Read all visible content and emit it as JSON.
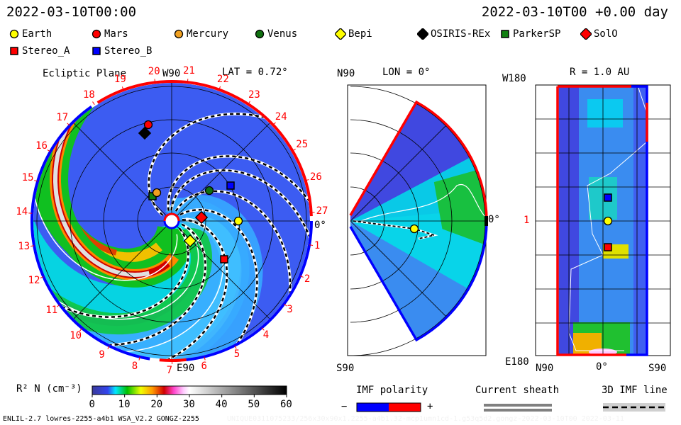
{
  "header": {
    "left_time": "2022-03-10T00:00",
    "right_time": "2022-03-10T00 +0.00 day"
  },
  "legend": [
    {
      "label": "Earth",
      "shape": "circle",
      "color": "#ffff00"
    },
    {
      "label": "Mars",
      "shape": "circle",
      "color": "#ff0000"
    },
    {
      "label": "Mercury",
      "shape": "circle",
      "color": "#f0a020"
    },
    {
      "label": "Venus",
      "shape": "circle",
      "color": "#107010"
    },
    {
      "label": "Bepi",
      "shape": "diamond",
      "color": "#ffff00"
    },
    {
      "label": "OSIRIS-REx",
      "shape": "diamond",
      "color": "#000000"
    },
    {
      "label": "ParkerSP",
      "shape": "square",
      "color": "#108010"
    },
    {
      "label": "SolO",
      "shape": "diamond",
      "color": "#ff0000"
    },
    {
      "label": "Stereo_A",
      "shape": "square",
      "color": "#ff0000"
    },
    {
      "label": "Stereo_B",
      "shape": "square",
      "color": "#0000ff"
    }
  ],
  "chart_data": [
    {
      "type": "heatmap",
      "title": "Ecliptic Plane",
      "subtitle": "LAT = 0.72°",
      "top_label": "W90",
      "bottom_label": "E90",
      "right_label": "0°",
      "rim_tick_labels": [
        "1",
        "2",
        "3",
        "4",
        "5",
        "6",
        "7",
        "8",
        "9",
        "10",
        "11",
        "12",
        "13",
        "14",
        "15",
        "16",
        "17",
        "18",
        "19",
        "20",
        "21",
        "22",
        "23",
        "24",
        "25",
        "26",
        "27"
      ],
      "bodies": [
        "Mars",
        "OSIRIS-REx",
        "ParkerSP",
        "Mercury",
        "Venus",
        "Stereo_B",
        "Earth",
        "SolO",
        "Bepi",
        "Stereo_A"
      ]
    },
    {
      "type": "heatmap",
      "title": "LON = 0°",
      "top_label": "N90",
      "bottom_label": "S90",
      "right_label": "0°",
      "bodies": [
        "Earth"
      ]
    },
    {
      "type": "heatmap",
      "title": "R = 1.0 AU",
      "y_top_label": "W180",
      "y_bottom_label": "E180",
      "y_mid_label": "1",
      "x_tick_labels": [
        "N90",
        "0°",
        "S90"
      ],
      "bodies": [
        "Stereo_B",
        "Earth",
        "Stereo_A"
      ]
    }
  ],
  "colorbar": {
    "label": "R² N (cm⁻³)",
    "ticks": [
      "0",
      "10",
      "20",
      "30",
      "40",
      "50",
      "60"
    ],
    "range": [
      0,
      60
    ]
  },
  "imf_legend": {
    "polarity_label": "IMF polarity",
    "minus": "−",
    "plus": "+",
    "negative_color": "#0000ff",
    "positive_color": "#ff0000",
    "sheath_label": "Current sheath",
    "line_label": "3D IMF line"
  },
  "footer": {
    "model": "ENLIL-2.7 lowres-2255-a4b1 WSA_V2.2 GONGZ-2255",
    "run_id": "UNIQUE0311075233/256x30x90x1.2255-a4b1.32-mcp1umn1cd-1.g53q5d2.gongz-2022-03-10T00   2022-03-11"
  }
}
